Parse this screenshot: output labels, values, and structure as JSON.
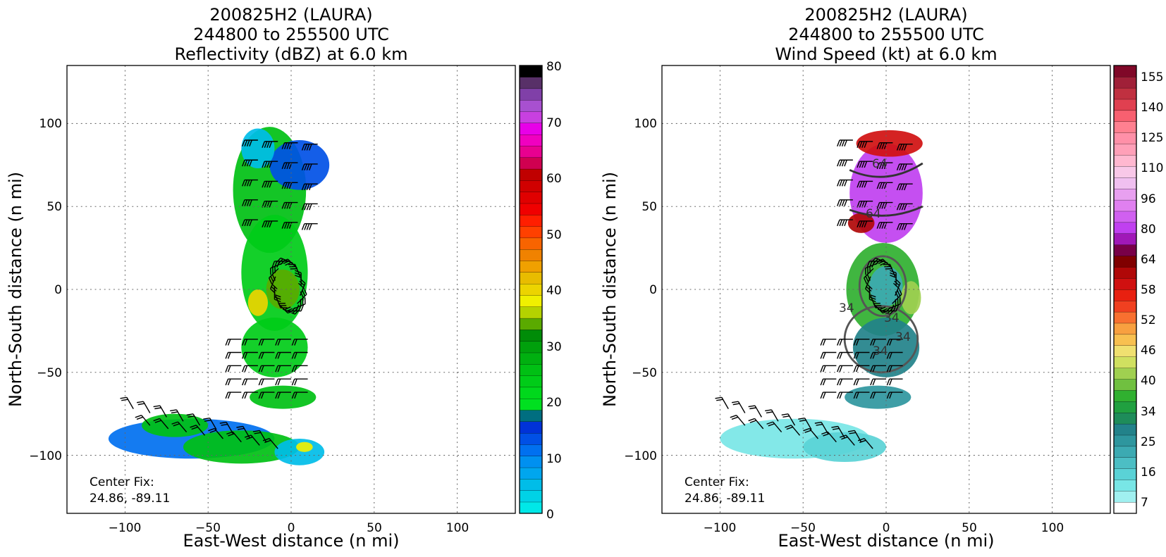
{
  "chart_data": [
    {
      "type": "heatmap",
      "title": [
        "200825H2 (LAURA)",
        "244800 to 255500 UTC",
        "Reflectivity (dBZ) at 6.0 km"
      ],
      "xlabel": "East-West distance (n mi)",
      "ylabel": "North-South distance (n mi)",
      "xlim": [
        -135,
        135
      ],
      "ylim": [
        -135,
        135
      ],
      "xticks": [
        "−100",
        "−50",
        "0",
        "50",
        "100"
      ],
      "yticks": [
        "100",
        "50",
        "0",
        "−50",
        "−100"
      ],
      "grid": true,
      "annotation": [
        "Center Fix:",
        "24.86, -89.11"
      ],
      "colorbar": {
        "range": [
          0,
          80
        ],
        "ticks": [
          "80",
          "70",
          "60",
          "50",
          "40",
          "30",
          "20",
          "10",
          "0"
        ],
        "colors": [
          "#00e8e8",
          "#00d2e6",
          "#00bde8",
          "#00a6ee",
          "#0090f0",
          "#0070f0",
          "#0050e6",
          "#0032d8",
          "#006e80",
          "#00e020",
          "#00d81c",
          "#00cc18",
          "#00c014",
          "#00b010",
          "#00a00c",
          "#008c08",
          "#5aaa00",
          "#b4d200",
          "#f0f000",
          "#ecd400",
          "#e8bc00",
          "#f0a000",
          "#f08200",
          "#f86400",
          "#ff4000",
          "#ff1e00",
          "#f00000",
          "#e00000",
          "#d00000",
          "#c00000",
          "#d00050",
          "#e80090",
          "#f000c0",
          "#e800e8",
          "#c840e0",
          "#a850d0",
          "#8040a8",
          "#583068",
          "#000000"
        ]
      },
      "field": {
        "blobs": [
          {
            "x": -13,
            "y": 60,
            "rx": 22,
            "ry": 38,
            "color": "#00c014"
          },
          {
            "x": 5,
            "y": 75,
            "rx": 18,
            "ry": 15,
            "color": "#0050e6"
          },
          {
            "x": -20,
            "y": 85,
            "rx": 10,
            "ry": 12,
            "color": "#00bde8"
          },
          {
            "x": -10,
            "y": 10,
            "rx": 20,
            "ry": 35,
            "color": "#00cc18"
          },
          {
            "x": -5,
            "y": 0,
            "rx": 10,
            "ry": 12,
            "color": "#5aaa00"
          },
          {
            "x": -20,
            "y": -8,
            "rx": 6,
            "ry": 8,
            "color": "#ecd400"
          },
          {
            "x": -10,
            "y": -35,
            "rx": 20,
            "ry": 18,
            "color": "#00cc18"
          },
          {
            "x": -5,
            "y": -65,
            "rx": 20,
            "ry": 7,
            "color": "#00c014"
          },
          {
            "x": -60,
            "y": -90,
            "rx": 50,
            "ry": 12,
            "color": "#0070f0"
          },
          {
            "x": -30,
            "y": -95,
            "rx": 35,
            "ry": 10,
            "color": "#00c014"
          },
          {
            "x": 5,
            "y": -98,
            "rx": 15,
            "ry": 8,
            "color": "#00bde8"
          },
          {
            "x": 8,
            "y": -95,
            "rx": 5,
            "ry": 3,
            "color": "#f0f000"
          },
          {
            "x": -70,
            "y": -82,
            "rx": 20,
            "ry": 7,
            "color": "#00c014"
          }
        ]
      }
    },
    {
      "type": "heatmap",
      "title": [
        "200825H2 (LAURA)",
        "244800 to 255500 UTC",
        "Wind Speed (kt) at 6.0 km"
      ],
      "xlabel": "East-West distance (n mi)",
      "ylabel": "North-South distance (n mi)",
      "xlim": [
        -135,
        135
      ],
      "ylim": [
        -135,
        135
      ],
      "xticks": [
        "−100",
        "−50",
        "0",
        "50",
        "100"
      ],
      "yticks": [
        "100",
        "50",
        "0",
        "−50",
        "−100"
      ],
      "grid": true,
      "annotation": [
        "Center Fix:",
        "24.86, -89.11"
      ],
      "contour_labels": [
        "64",
        "64",
        "34",
        "34",
        "34",
        "34"
      ],
      "colorbar": {
        "ticks": [
          "155",
          "140",
          "125",
          "110",
          "96",
          "80",
          "64",
          "58",
          "52",
          "46",
          "40",
          "34",
          "25",
          "16",
          "7"
        ],
        "colors": [
          "#ffffff",
          "#a0f0f0",
          "#78e6e6",
          "#5ad2d6",
          "#4cbec4",
          "#3caab2",
          "#2e969e",
          "#22828a",
          "#1e8c5a",
          "#20a040",
          "#30b030",
          "#70c040",
          "#a0d050",
          "#d0e060",
          "#f0e070",
          "#f8c050",
          "#f8a040",
          "#f87030",
          "#f04020",
          "#e82010",
          "#d01010",
          "#b00808",
          "#800000",
          "#780048",
          "#a018b8",
          "#c040f0",
          "#d060f0",
          "#e080f0",
          "#e8a0f0",
          "#f0c0f0",
          "#f8c8e8",
          "#ffb8d0",
          "#ffa0b8",
          "#ff90a8",
          "#ff8090",
          "#f86070",
          "#e04050",
          "#c03040",
          "#a02038",
          "#800828"
        ]
      },
      "field": {
        "blobs": [
          {
            "x": 0,
            "y": 58,
            "rx": 22,
            "ry": 30,
            "color": "#c040f0"
          },
          {
            "x": 2,
            "y": 88,
            "rx": 20,
            "ry": 8,
            "color": "#d01010"
          },
          {
            "x": -15,
            "y": 40,
            "rx": 8,
            "ry": 6,
            "color": "#b00808"
          },
          {
            "x": -2,
            "y": 0,
            "rx": 22,
            "ry": 28,
            "color": "#30b030"
          },
          {
            "x": 0,
            "y": 2,
            "rx": 10,
            "ry": 12,
            "color": "#3caab2"
          },
          {
            "x": 0,
            "y": -35,
            "rx": 20,
            "ry": 18,
            "color": "#22828a"
          },
          {
            "x": -5,
            "y": -65,
            "rx": 20,
            "ry": 7,
            "color": "#2e969e"
          },
          {
            "x": -55,
            "y": -90,
            "rx": 45,
            "ry": 12,
            "color": "#78e6e6"
          },
          {
            "x": -25,
            "y": -95,
            "rx": 25,
            "ry": 9,
            "color": "#5ad2d6"
          },
          {
            "x": 15,
            "y": -5,
            "rx": 6,
            "ry": 10,
            "color": "#a0d050"
          }
        ]
      }
    }
  ]
}
